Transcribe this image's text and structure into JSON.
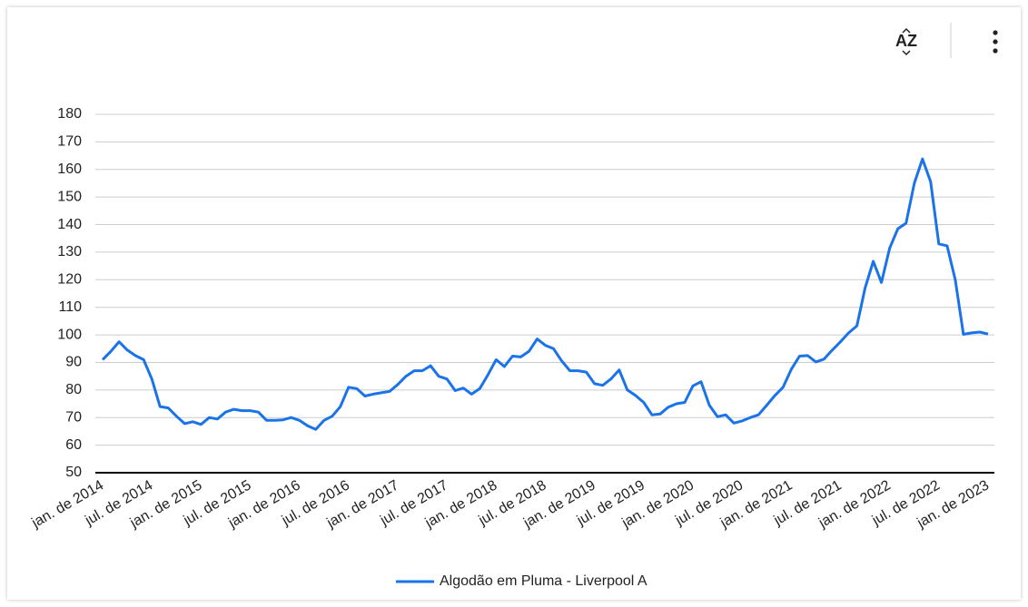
{
  "toolbar": {
    "sort_label": "AZ"
  },
  "chart_data": {
    "type": "line",
    "categories": [
      "jan. de 2014",
      null,
      null,
      null,
      null,
      null,
      "jul. de 2014",
      null,
      null,
      null,
      null,
      null,
      "jan. de 2015",
      null,
      null,
      null,
      null,
      null,
      "jul. de 2015",
      null,
      null,
      null,
      null,
      null,
      "jan. de 2016",
      null,
      null,
      null,
      null,
      null,
      "jul. de 2016",
      null,
      null,
      null,
      null,
      null,
      "jan. de 2017",
      null,
      null,
      null,
      null,
      null,
      "jul. de 2017",
      null,
      null,
      null,
      null,
      null,
      "jan. de 2018",
      null,
      null,
      null,
      null,
      null,
      "jul. de 2018",
      null,
      null,
      null,
      null,
      null,
      "jan. de 2019",
      null,
      null,
      null,
      null,
      null,
      "jul. de 2019",
      null,
      null,
      null,
      null,
      null,
      "jan. de 2020",
      null,
      null,
      null,
      null,
      null,
      "jul. de 2020",
      null,
      null,
      null,
      null,
      null,
      "jan. de 2021",
      null,
      null,
      null,
      null,
      null,
      "jul. de 2021",
      null,
      null,
      null,
      null,
      null,
      "jan. de 2022",
      null,
      null,
      null,
      null,
      null,
      "jul. de 2022",
      null,
      null,
      null,
      null,
      null,
      "jan. de 2023"
    ],
    "series": [
      {
        "name": "Algodão em Pluma - Liverpool A",
        "color": "#1a73e8",
        "values": [
          91,
          94,
          97.5,
          94.5,
          92.5,
          91,
          84,
          74,
          73.5,
          70.5,
          67.8,
          68.5,
          67.5,
          70,
          69.5,
          72,
          73,
          72.5,
          72.5,
          72,
          69,
          69,
          69.2,
          70,
          69,
          67,
          65.7,
          69,
          70.5,
          74,
          81,
          80.5,
          77.8,
          78.5,
          79,
          79.5,
          82,
          85,
          87,
          87,
          88.8,
          85,
          84,
          79.8,
          80.7,
          78.5,
          80.5,
          85.5,
          91,
          88.5,
          92.3,
          92,
          94,
          98.5,
          96.2,
          95,
          90.5,
          87,
          87,
          86.5,
          82.3,
          81.7,
          84,
          87.3,
          80,
          78,
          75.5,
          71,
          71.3,
          73.8,
          75,
          75.5,
          81.5,
          83,
          74.5,
          70.3,
          71,
          68,
          68.8,
          70,
          71,
          74.5,
          78,
          81,
          87.5,
          92.3,
          92.5,
          90.2,
          91.2,
          94.5,
          97.5,
          100.7,
          103.3,
          117,
          126.7,
          119,
          131.5,
          138.5,
          140.5,
          155,
          163.8,
          155.5,
          133,
          132.3,
          120,
          100.2,
          100.7,
          101,
          100.3
        ]
      }
    ],
    "ylim": [
      50,
      180
    ],
    "yticks": [
      50,
      60,
      70,
      80,
      90,
      100,
      110,
      120,
      130,
      140,
      150,
      160,
      170,
      180
    ],
    "grid": true,
    "legend": "bottom"
  }
}
